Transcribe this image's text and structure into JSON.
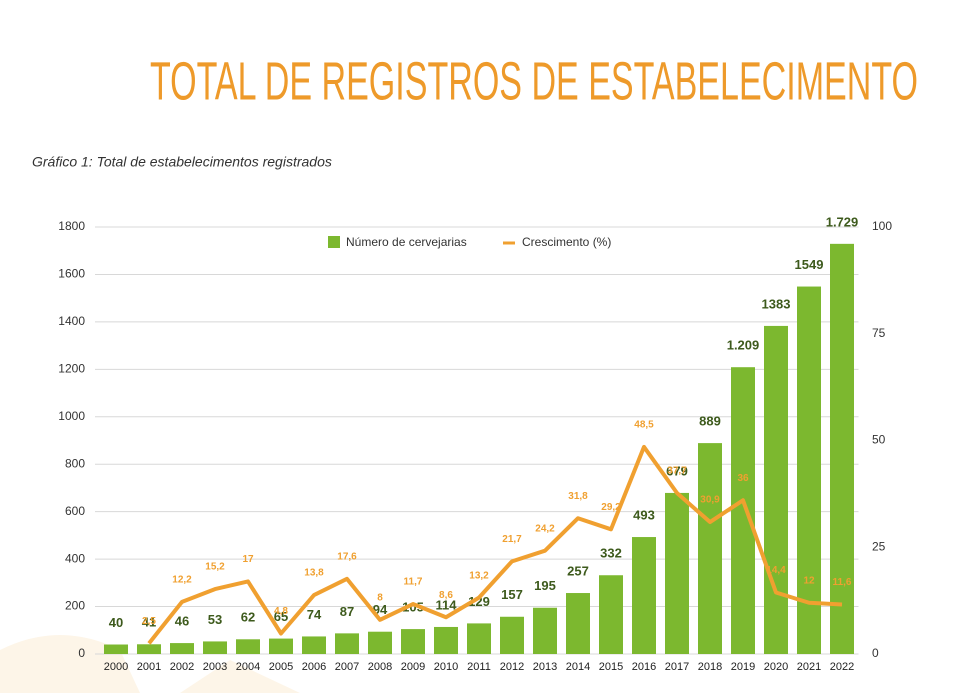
{
  "chart_data": {
    "type": "bar",
    "title": "TOTAL DE REGISTROS DE ESTABELECIMENTO",
    "subtitle": "Gráfico 1: Total de estabelecimentos registrados",
    "categories": [
      "2000",
      "2001",
      "2002",
      "2003",
      "2004",
      "2005",
      "2006",
      "2007",
      "2008",
      "2009",
      "2010",
      "2011",
      "2012",
      "2013",
      "2014",
      "2015",
      "2016",
      "2017",
      "2018",
      "2019",
      "2020",
      "2021",
      "2022"
    ],
    "series": [
      {
        "name": "Número de cervejarias",
        "color": "#7cb82f",
        "type": "bar",
        "values": [
          40,
          41,
          46,
          53,
          62,
          65,
          74,
          87,
          94,
          105,
          114,
          129,
          157,
          195,
          257,
          332,
          493,
          679,
          889,
          1209,
          1383,
          1549,
          1729
        ],
        "value_labels": [
          "40",
          "41",
          "46",
          "53",
          "62",
          "65",
          "74",
          "87",
          "94",
          "105",
          "114",
          "129",
          "157",
          "195",
          "257",
          "332",
          "493",
          "679",
          "889",
          "1.209",
          "1383",
          "1549",
          "1.729"
        ]
      },
      {
        "name": "Crescimento (%)",
        "color": "#f0a030",
        "type": "line",
        "axis": "y2",
        "values": [
          null,
          2.5,
          12.2,
          15.2,
          17,
          4.8,
          13.8,
          17.6,
          8,
          11.7,
          8.6,
          13.2,
          21.7,
          24.2,
          31.8,
          29.2,
          48.5,
          37.7,
          30.9,
          36,
          14.4,
          12,
          11.6
        ],
        "value_labels": [
          null,
          "2,5",
          "12,2",
          "15,2",
          "17",
          "4,8",
          "13,8",
          "17,6",
          "8",
          "11,7",
          "8,6",
          "13,2",
          "21,7",
          "24,2",
          "31,8",
          "29,2",
          "48,5",
          "37,7",
          "30,9",
          "36",
          "14,4",
          "12",
          "11,6"
        ]
      }
    ],
    "ylim": [
      0,
      1800
    ],
    "yticks": [
      0,
      200,
      400,
      600,
      800,
      1000,
      1200,
      1400,
      1600,
      1800
    ],
    "y2lim": [
      0,
      100
    ],
    "y2ticks": [
      0,
      25,
      50,
      75,
      100
    ],
    "grid": true,
    "legend": "top"
  }
}
